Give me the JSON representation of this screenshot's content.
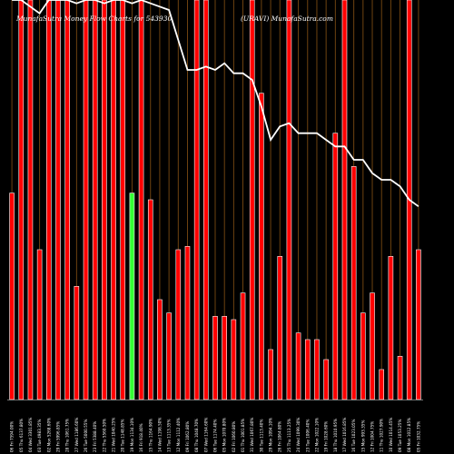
{
  "chart_data": {
    "type": "bar",
    "title_left": "MunafaSutra Money Flow Charts for 543930",
    "title_right": "(URAVI) MunafaSutra.com",
    "categories": [
      "06 Fri 7594.00%",
      "05 Thu 6137.80%",
      "04 Wed 3301.85%",
      "03 Tue 4983.35%",
      "02 Mon 5268.60%",
      "29 Fri 5996.85%",
      "28 Thu 1061.75%",
      "27 Wed 1186.60%",
      "26 Tue 5000.55%",
      "23 Fri 5388.40%",
      "22 Thu 5560.50%",
      "21 Wed 1040.25%",
      "20 Tue 1148.85%",
      "19 Mon 1134.10%",
      "16 Fri 918.40%",
      "15 Thu 1164.90%",
      "14 Wed 1198.50%",
      "13 Tue 1113.35%",
      "12 Mon 1112.40%",
      "09 Fri 1062.80%",
      "08 Thu 1048.70%",
      "07 Wed 1164.60%",
      "06 Tue 1174.40%",
      "05 Mon 1070.80%",
      "02 Fri 1060.80%",
      "01 Thu 1001.85%",
      "31 Wed 1067.80%",
      "30 Tue 1113.40%",
      "29 Mon 1094.10%",
      "26 Fri 1064.80%",
      "25 Thu 1113.25%",
      "24 Wed 1099.30%",
      "23 Tue 1006.40%",
      "22 Mon 1022.10%",
      "19 Fri 1028.60%",
      "18 Thu 1010.95%",
      "17 Wed 1016.85%",
      "16 Tue 1023.05%",
      "15 Mon 993.35%",
      "12 Fri 1004.75%",
      "11 Thu 1027.90%",
      "10 Wed 1014.45%",
      "09 Tue 1053.25%",
      "08 Mon 1012.85%",
      "05 Fri 1032.75%"
    ],
    "values": [
      62,
      120,
      120,
      45,
      120,
      120,
      120,
      34,
      120,
      120,
      120,
      120,
      120,
      62,
      120,
      60,
      30,
      26,
      45,
      46,
      120,
      120,
      25,
      25,
      24,
      32,
      120,
      92,
      15,
      43,
      120,
      20,
      18,
      18,
      12,
      80,
      120,
      70,
      26,
      32,
      9,
      43,
      13,
      120,
      45
    ],
    "green_index": 13,
    "line_values": [
      120,
      120,
      118,
      116,
      120,
      121,
      120,
      119,
      120,
      121,
      119,
      120,
      120,
      119,
      120,
      119,
      118,
      117,
      108,
      99,
      99,
      100,
      99,
      101,
      98,
      98,
      96,
      88,
      78,
      82,
      83,
      80,
      80,
      80,
      78,
      76,
      76,
      72,
      72,
      68,
      66,
      66,
      64,
      60,
      58
    ],
    "ylim": [
      0,
      120
    ],
    "grid": "vertical lines",
    "legend": "none",
    "colors": {
      "background": "#000000",
      "bar": "#ff0000",
      "bar_outline": "#ffffff",
      "green_bar": "#33ff33",
      "line": "#ffffff",
      "grid": "#7a4a12",
      "baseline": "#999999",
      "text": "#ffffff"
    }
  }
}
